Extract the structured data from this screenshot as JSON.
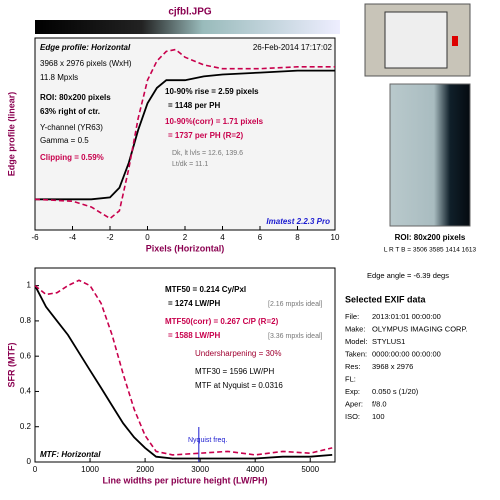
{
  "chart_data": [
    {
      "type": "line",
      "title": "cjfbl.JPG",
      "xlabel": "Pixels (Horizontal)",
      "ylabel": "Edge profile (linear)",
      "x": [
        -6,
        -4,
        -3,
        -2,
        -1.5,
        -1,
        -0.5,
        0,
        0.5,
        1,
        1.5,
        2,
        3,
        4,
        6,
        8,
        10
      ],
      "series": [
        {
          "color": "#000000",
          "values": [
            0.16,
            0.16,
            0.16,
            0.17,
            0.22,
            0.35,
            0.52,
            0.66,
            0.74,
            0.78,
            0.78,
            0.78,
            0.8,
            0.81,
            0.82,
            0.83,
            0.83
          ]
        },
        {
          "color": "#c8004c",
          "dashed": true,
          "values": [
            0.16,
            0.15,
            0.12,
            0.06,
            0.1,
            0.32,
            0.58,
            0.78,
            0.88,
            0.93,
            0.94,
            0.9,
            0.86,
            0.84,
            0.84,
            0.85,
            0.85
          ]
        }
      ],
      "xlim": [
        -6,
        10
      ],
      "xticks": [
        -6,
        -4,
        -2,
        0,
        2,
        4,
        6,
        8,
        10
      ],
      "ylim": [
        0,
        1
      ],
      "annotations": [
        "Edge profile: Horizontal",
        "26-Feb-2014 17:17:02",
        "3968 x 2976 pixels (WxH)",
        "11.8 Mpxls",
        "ROI: 80x200 pixels",
        "63% right of ctr.",
        "Y-channel  (YR63)",
        "Gamma = 0.5",
        "Clipping =  0.59%",
        "10-90% rise = 2.59 pixels",
        "= 1148 per PH",
        "10-90%(corr) = 1.71 pixels",
        "= 1737 per PH  (R=2)",
        "Dk, lt lvls = 12.6, 139.6",
        "Lt/dk = 11.1",
        "Imatest 2.2.3 Pro"
      ]
    },
    {
      "type": "line",
      "xlabel": "Line widths per picture height (LW/PH)",
      "ylabel": "SFR (MTF)",
      "x": [
        0,
        200,
        400,
        600,
        800,
        1000,
        1200,
        1400,
        1600,
        1800,
        2000,
        2200,
        2500,
        3000,
        3500,
        4000,
        4500,
        5000,
        5400
      ],
      "series": [
        {
          "color": "#000000",
          "values": [
            1,
            0.88,
            0.8,
            0.72,
            0.62,
            0.52,
            0.42,
            0.32,
            0.22,
            0.14,
            0.08,
            0.03,
            0.02,
            0.02,
            0.02,
            0.02,
            0.03,
            0.03,
            0.04
          ]
        },
        {
          "color": "#c8004c",
          "dashed": true,
          "values": [
            1,
            0.95,
            0.96,
            1.0,
            1.03,
            1.0,
            0.9,
            0.72,
            0.5,
            0.3,
            0.15,
            0.06,
            0.04,
            0.05,
            0.06,
            0.04,
            0.06,
            0.05,
            0.08
          ]
        }
      ],
      "xlim": [
        0,
        5450
      ],
      "xticks": [
        0,
        1000,
        2000,
        3000,
        4000,
        5000
      ],
      "ylim": [
        0,
        1.1
      ],
      "yticks": [
        0,
        0.2,
        0.4,
        0.6,
        0.8,
        1
      ],
      "nyquist": 2976,
      "annotations": [
        "MTF50 = 0.214 Cy/Pxl",
        "= 1274 LW/PH",
        "[2.16 mpxls ideal]",
        "MTF50(corr) = 0.267 C/P  (R=2)",
        "= 1588 LW/PH",
        "[3.36 mpxls ideal]",
        "Undersharpening = 30%",
        "MTF30 = 1596 LW/PH",
        "MTF at Nyquist = 0.0316",
        "MTF: Horizontal",
        "Nyquist freq."
      ]
    }
  ],
  "side": {
    "roi": "ROI: 80x200 pixels",
    "lrtb": "L R T B = 3506 3585  1414 1613",
    "edge_angle": "Edge angle = -6.39 degs",
    "exif_title": "Selected EXIF data",
    "exif": [
      [
        "File:",
        "2013:01:01 00:00:00"
      ],
      [
        "Make:",
        "OLYMPUS IMAGING CORP."
      ],
      [
        "Model:",
        "STYLUS1"
      ],
      [
        "Taken:",
        "0000:00:00 00:00:00"
      ],
      [
        "Res:",
        "3968 x 2976"
      ],
      [
        "FL:",
        ""
      ],
      [
        "Exp:",
        "0.050 s  (1/20)"
      ],
      [
        "Aper:",
        "f/8.0"
      ],
      [
        "ISO:",
        "100"
      ]
    ]
  }
}
